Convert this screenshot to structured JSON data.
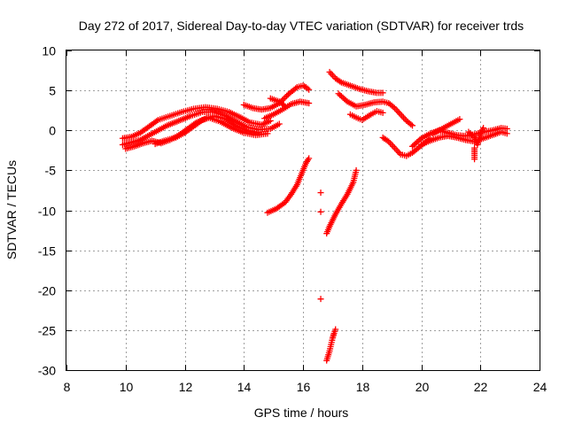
{
  "chart_data": {
    "type": "scatter",
    "title": "Day 272 of 2017, Sidereal Day-to-day VTEC variation (SDTVAR) for receiver trds",
    "xlabel": "GPS time / hours",
    "ylabel": "SDTVAR / TECUs",
    "xlim": [
      8,
      24
    ],
    "ylim": [
      -30,
      10
    ],
    "xticks": [
      8,
      10,
      12,
      14,
      16,
      18,
      20,
      22,
      24
    ],
    "yticks": [
      -30,
      -25,
      -20,
      -15,
      -10,
      -5,
      0,
      5,
      10
    ],
    "grid": true,
    "marker": "+",
    "color": "#ff0000",
    "segments": [
      {
        "name": "early-band-upper",
        "points": [
          [
            9.9,
            -1.0
          ],
          [
            10.2,
            -0.8
          ],
          [
            10.5,
            -0.3
          ],
          [
            10.8,
            0.5
          ],
          [
            11.1,
            1.3
          ],
          [
            11.5,
            1.8
          ],
          [
            11.9,
            2.3
          ],
          [
            12.3,
            2.7
          ],
          [
            12.7,
            2.9
          ],
          [
            13.1,
            2.7
          ],
          [
            13.5,
            2.3
          ],
          [
            13.9,
            1.6
          ],
          [
            14.2,
            1.0
          ],
          [
            14.6,
            0.7
          ],
          [
            14.9,
            1.2
          ]
        ]
      },
      {
        "name": "early-band-mid",
        "points": [
          [
            9.9,
            -1.8
          ],
          [
            10.2,
            -1.5
          ],
          [
            10.5,
            -1.2
          ],
          [
            10.8,
            -0.6
          ],
          [
            11.1,
            0.0
          ],
          [
            11.4,
            0.6
          ],
          [
            11.8,
            1.2
          ],
          [
            12.2,
            1.8
          ],
          [
            12.6,
            2.3
          ],
          [
            13.0,
            2.3
          ],
          [
            13.4,
            1.8
          ],
          [
            13.8,
            1.0
          ],
          [
            14.1,
            0.4
          ],
          [
            14.5,
            0.1
          ],
          [
            14.9,
            0.2
          ],
          [
            15.2,
            0.8
          ]
        ]
      },
      {
        "name": "early-band-lower",
        "points": [
          [
            10.0,
            -2.3
          ],
          [
            10.3,
            -2.0
          ],
          [
            10.6,
            -1.6
          ],
          [
            10.9,
            -1.3
          ],
          [
            11.2,
            -1.6
          ],
          [
            11.5,
            -1.2
          ],
          [
            11.8,
            -0.6
          ],
          [
            12.1,
            0.2
          ],
          [
            12.4,
            1.0
          ],
          [
            12.8,
            1.6
          ],
          [
            13.2,
            1.1
          ],
          [
            13.6,
            0.3
          ],
          [
            14.0,
            -0.3
          ],
          [
            14.4,
            -0.6
          ],
          [
            14.8,
            -0.4
          ]
        ]
      },
      {
        "name": "early-band-low2",
        "points": [
          [
            11.0,
            -1.7
          ],
          [
            11.3,
            -1.3
          ],
          [
            11.7,
            -0.9
          ],
          [
            12.0,
            -0.3
          ],
          [
            12.3,
            0.5
          ],
          [
            12.6,
            1.3
          ],
          [
            13.0,
            1.8
          ],
          [
            13.4,
            1.4
          ],
          [
            13.7,
            0.6
          ],
          [
            14.1,
            0.0
          ],
          [
            14.5,
            -0.3
          ]
        ]
      },
      {
        "name": "rise-to-peak",
        "points": [
          [
            14.0,
            3.2
          ],
          [
            14.3,
            2.8
          ],
          [
            14.6,
            2.6
          ],
          [
            14.9,
            2.8
          ],
          [
            15.2,
            3.4
          ],
          [
            15.5,
            4.5
          ],
          [
            15.8,
            5.4
          ],
          [
            16.0,
            5.6
          ],
          [
            16.1,
            5.4
          ],
          [
            16.2,
            5.1
          ]
        ]
      },
      {
        "name": "rise-lower",
        "points": [
          [
            14.7,
            1.5
          ],
          [
            15.0,
            2.0
          ],
          [
            15.3,
            2.6
          ],
          [
            15.6,
            3.3
          ],
          [
            15.9,
            3.6
          ],
          [
            16.2,
            3.4
          ]
        ]
      },
      {
        "name": "early-extra",
        "points": [
          [
            14.9,
            4.0
          ],
          [
            15.2,
            3.6
          ],
          [
            15.4,
            3.0
          ]
        ]
      },
      {
        "name": "late-upper-arc",
        "points": [
          [
            16.9,
            7.3
          ],
          [
            17.1,
            6.5
          ],
          [
            17.3,
            6.0
          ],
          [
            17.6,
            5.6
          ],
          [
            17.9,
            5.2
          ],
          [
            18.2,
            4.9
          ],
          [
            18.5,
            4.7
          ],
          [
            18.7,
            4.7
          ]
        ]
      },
      {
        "name": "late-mid-arc",
        "points": [
          [
            17.2,
            4.6
          ],
          [
            17.5,
            3.6
          ],
          [
            17.8,
            3.0
          ],
          [
            18.1,
            3.2
          ],
          [
            18.4,
            3.5
          ],
          [
            18.7,
            3.6
          ],
          [
            18.9,
            3.4
          ],
          [
            19.1,
            2.8
          ],
          [
            19.3,
            2.0
          ],
          [
            19.5,
            1.2
          ],
          [
            19.7,
            0.6
          ]
        ]
      },
      {
        "name": "late-lower-arc",
        "points": [
          [
            17.6,
            2.0
          ],
          [
            17.8,
            1.6
          ],
          [
            18.0,
            1.3
          ],
          [
            18.3,
            2.0
          ],
          [
            18.5,
            2.4
          ],
          [
            18.7,
            2.2
          ]
        ]
      },
      {
        "name": "dip-curve",
        "points": [
          [
            18.7,
            -0.9
          ],
          [
            18.9,
            -1.4
          ],
          [
            19.1,
            -2.2
          ],
          [
            19.3,
            -3.0
          ],
          [
            19.5,
            -3.2
          ],
          [
            19.7,
            -2.8
          ],
          [
            19.9,
            -2.2
          ],
          [
            20.1,
            -1.6
          ],
          [
            20.3,
            -1.0
          ]
        ]
      },
      {
        "name": "tail-band-1",
        "points": [
          [
            19.7,
            -2.0
          ],
          [
            20.0,
            -1.0
          ],
          [
            20.3,
            -0.4
          ],
          [
            20.6,
            0.0
          ],
          [
            20.9,
            -0.3
          ],
          [
            21.2,
            -0.6
          ],
          [
            21.5,
            -0.7
          ],
          [
            21.8,
            -0.5
          ],
          [
            22.1,
            -0.2
          ],
          [
            22.4,
            0.0
          ],
          [
            22.7,
            0.3
          ],
          [
            22.9,
            0.2
          ]
        ]
      },
      {
        "name": "tail-band-2",
        "points": [
          [
            20.0,
            -1.8
          ],
          [
            20.3,
            -1.3
          ],
          [
            20.6,
            -0.9
          ],
          [
            20.9,
            -0.7
          ],
          [
            21.2,
            -0.9
          ],
          [
            21.5,
            -1.2
          ],
          [
            21.8,
            -1.4
          ],
          [
            22.1,
            -1.0
          ],
          [
            22.4,
            -0.6
          ],
          [
            22.7,
            -0.2
          ],
          [
            22.9,
            -0.4
          ]
        ]
      },
      {
        "name": "tail-band-3",
        "points": [
          [
            20.4,
            -0.4
          ],
          [
            20.7,
            0.2
          ],
          [
            21.0,
            0.8
          ],
          [
            21.3,
            1.4
          ]
        ]
      },
      {
        "name": "tail-band-4",
        "points": [
          [
            21.6,
            -0.2
          ],
          [
            21.8,
            -0.9
          ],
          [
            21.9,
            -1.8
          ],
          [
            22.0,
            -0.5
          ],
          [
            22.1,
            0.3
          ]
        ]
      },
      {
        "name": "tail-band-5",
        "points": [
          [
            21.8,
            -2.2
          ],
          [
            21.8,
            -3.6
          ]
        ]
      },
      {
        "name": "neg-arc-1",
        "points": [
          [
            14.8,
            -10.3
          ],
          [
            15.1,
            -9.8
          ],
          [
            15.4,
            -9.0
          ],
          [
            15.6,
            -8.0
          ],
          [
            15.8,
            -6.8
          ],
          [
            16.0,
            -5.0
          ],
          [
            16.1,
            -4.1
          ],
          [
            16.2,
            -3.5
          ]
        ]
      },
      {
        "name": "neg-arc-2",
        "points": [
          [
            16.8,
            -12.9
          ],
          [
            16.9,
            -12.0
          ],
          [
            17.1,
            -10.5
          ],
          [
            17.3,
            -9.2
          ],
          [
            17.5,
            -8.0
          ],
          [
            17.7,
            -6.5
          ],
          [
            17.8,
            -5.0
          ]
        ]
      },
      {
        "name": "isolated",
        "points": [
          [
            16.6,
            -7.8
          ],
          [
            16.6,
            -10.2
          ],
          [
            16.6,
            -21.1
          ]
        ]
      },
      {
        "name": "deep-drop",
        "points": [
          [
            16.8,
            -28.8
          ],
          [
            16.9,
            -27.6
          ],
          [
            16.95,
            -26.8
          ],
          [
            17.0,
            -26.0
          ],
          [
            17.05,
            -25.4
          ],
          [
            17.1,
            -24.9
          ]
        ]
      }
    ]
  }
}
